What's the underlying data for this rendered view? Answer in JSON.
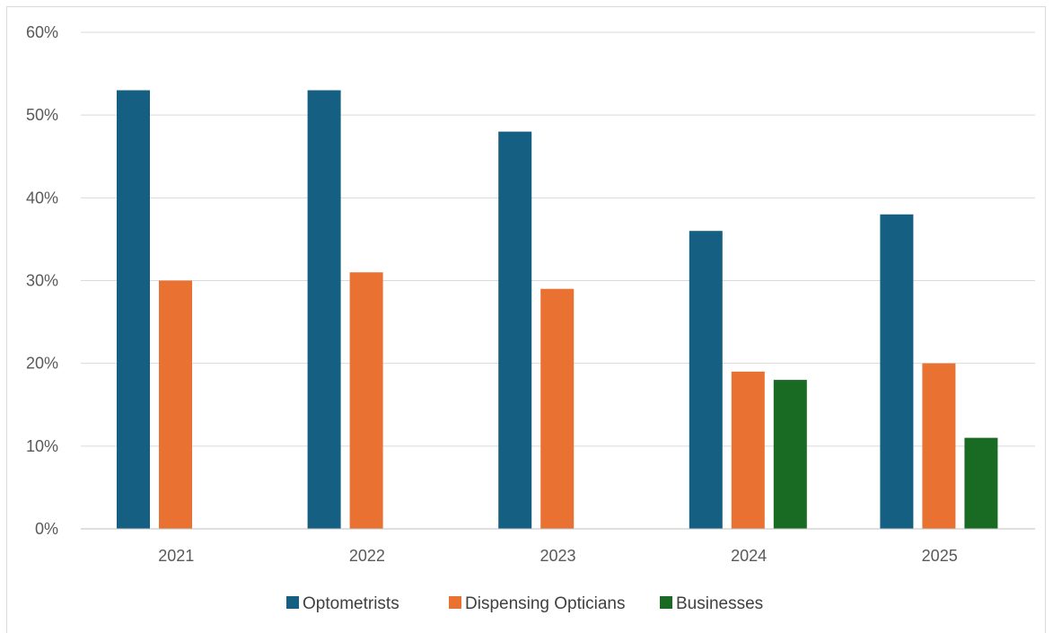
{
  "chart_data": {
    "type": "bar",
    "categories": [
      "2021",
      "2022",
      "2023",
      "2024",
      "2025"
    ],
    "series": [
      {
        "name": "Optometrists",
        "color": "#156082",
        "values": [
          53,
          53,
          48,
          36,
          38
        ]
      },
      {
        "name": "Dispensing Opticians",
        "color": "#E97132",
        "values": [
          30,
          31,
          29,
          19,
          20
        ]
      },
      {
        "name": "Businesses",
        "color": "#196B24",
        "values": [
          null,
          null,
          null,
          18,
          11
        ]
      }
    ],
    "ylim": [
      0,
      60
    ],
    "ytick_values": [
      0,
      10,
      20,
      30,
      40,
      50,
      60
    ],
    "ytick_labels": [
      "0%",
      "10%",
      "20%",
      "30%",
      "40%",
      "50%",
      "60%"
    ],
    "grid": true,
    "legend_position": "bottom",
    "title": "",
    "xlabel": "",
    "ylabel": ""
  }
}
